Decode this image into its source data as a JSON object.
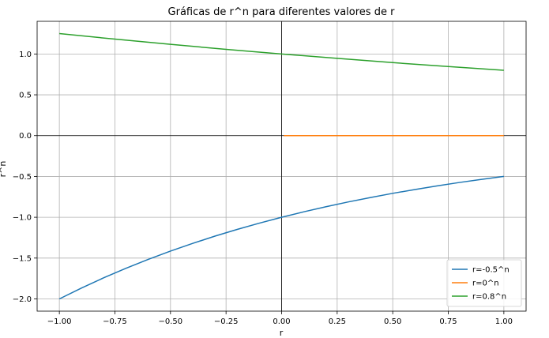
{
  "chart_data": {
    "type": "line",
    "title": "Gráficas de r^n para diferentes valores de r",
    "xlabel": "r",
    "ylabel": "r^n",
    "xlim": [
      -1.1,
      1.1
    ],
    "ylim": [
      -2.15,
      1.4
    ],
    "x_ticks": [
      -1.0,
      -0.75,
      -0.5,
      -0.25,
      0.0,
      0.25,
      0.5,
      0.75,
      1.0
    ],
    "x_tick_labels": [
      "−1.00",
      "−0.75",
      "−0.50",
      "−0.25",
      "0.00",
      "0.25",
      "0.50",
      "0.75",
      "1.00"
    ],
    "y_ticks": [
      -2.0,
      -1.5,
      -1.0,
      -0.5,
      0.0,
      0.5,
      1.0
    ],
    "y_tick_labels": [
      "−2.0",
      "−1.5",
      "−1.0",
      "−0.5",
      "0.0",
      "0.5",
      "1.0"
    ],
    "grid": true,
    "zero_lines": true,
    "legend_position": "lower-right",
    "series": [
      {
        "name": "r=-0.5^n",
        "color": "#1f77b4",
        "x": [
          -1.0,
          -0.9,
          -0.8,
          -0.7,
          -0.6,
          -0.5,
          -0.4,
          -0.3,
          -0.2,
          -0.1,
          0.0,
          0.1,
          0.2,
          0.3,
          0.4,
          0.5,
          0.6,
          0.7,
          0.8,
          0.9,
          1.0
        ],
        "y": [
          -2.0,
          -1.866,
          -1.741,
          -1.625,
          -1.516,
          -1.414,
          -1.32,
          -1.231,
          -1.149,
          -1.072,
          -1.0,
          -0.933,
          -0.871,
          -0.812,
          -0.758,
          -0.707,
          -0.66,
          -0.616,
          -0.574,
          -0.536,
          -0.5
        ]
      },
      {
        "name": "r=0^n",
        "color": "#ff7f0e",
        "x": [
          0.01,
          0.25,
          0.5,
          0.75,
          1.0
        ],
        "y": [
          0.0,
          0.0,
          0.0,
          0.0,
          0.0
        ]
      },
      {
        "name": "r=0.8^n",
        "color": "#2ca02c",
        "x": [
          -1.0,
          -0.75,
          -0.5,
          -0.25,
          0.0,
          0.25,
          0.5,
          0.75,
          1.0
        ],
        "y": [
          1.25,
          1.182,
          1.118,
          1.057,
          1.0,
          0.946,
          0.894,
          0.846,
          0.8
        ]
      }
    ]
  }
}
